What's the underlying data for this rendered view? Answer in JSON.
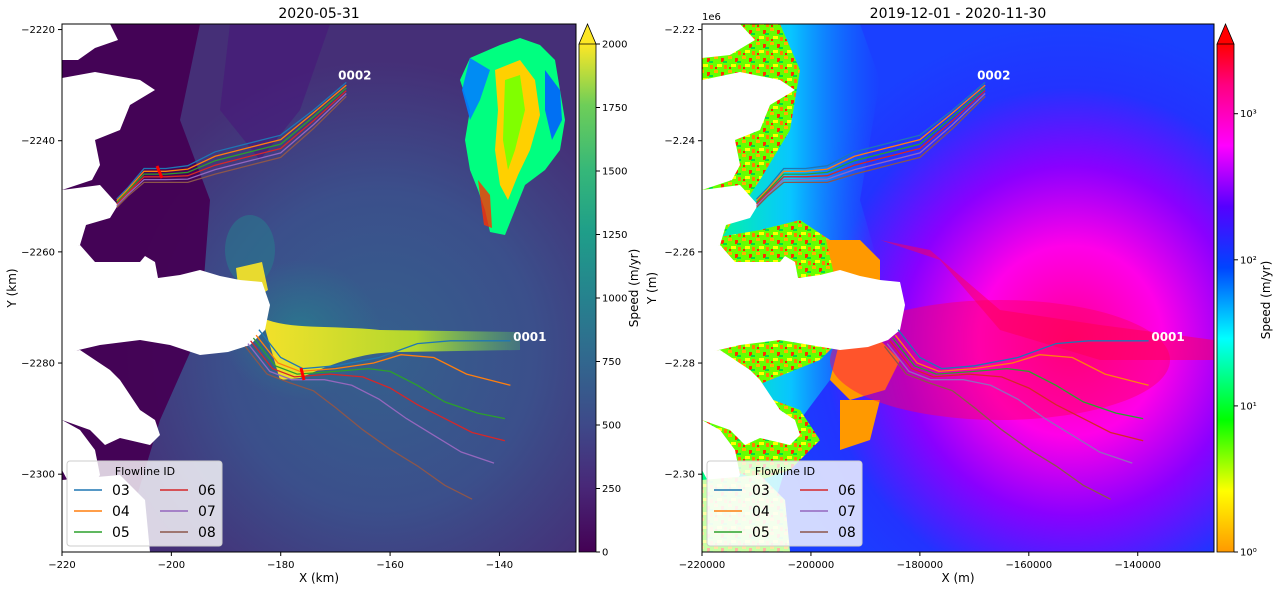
{
  "chart_data": [
    {
      "type": "heatmap",
      "title": "2020-05-31",
      "xlabel": "X (km)",
      "ylabel": "Y (km)",
      "xlim": [
        -220,
        -126
      ],
      "ylim": [
        -2314,
        -2219
      ],
      "xticks": [
        -220,
        -200,
        -180,
        -160,
        -140
      ],
      "yticks": [
        -2220,
        -2240,
        -2260,
        -2280,
        -2300
      ],
      "colorbar": {
        "label": "Speed (m/yr)",
        "scale": "linear",
        "range": [
          0,
          2000
        ],
        "ticks": [
          0,
          250,
          500,
          750,
          1000,
          1250,
          1500,
          1750,
          2000
        ],
        "colormap": "viridis",
        "extend": "max"
      },
      "glacier_labels": [
        {
          "text": "0002",
          "x": -169.5,
          "y": -2229
        },
        {
          "text": "0001",
          "x": -137.5,
          "y": -2276
        }
      ],
      "legend": {
        "title": "Flowline ID",
        "placement": "lower-left",
        "entries": [
          "03",
          "04",
          "05",
          "06",
          "07",
          "08"
        ]
      },
      "series": [
        {
          "name": "03",
          "color": "#1f77b4",
          "points": [
            [
              -184,
              -2274
            ],
            [
              -180,
              -2279
            ],
            [
              -176,
              -2281
            ],
            [
              -170,
              -2280.5
            ],
            [
              -162,
              -2279
            ],
            [
              -155,
              -2276.5
            ],
            [
              -149,
              -2276
            ],
            [
              -143,
              -2276
            ],
            [
              -138,
              -2276
            ]
          ]
        },
        {
          "name": "04",
          "color": "#ff7f0e",
          "points": [
            [
              -184.5,
              -2275
            ],
            [
              -180.5,
              -2280
            ],
            [
              -176.5,
              -2281.5
            ],
            [
              -170,
              -2281
            ],
            [
              -163,
              -2280
            ],
            [
              -158,
              -2278.5
            ],
            [
              -152,
              -2279
            ],
            [
              -146,
              -2282
            ],
            [
              -138,
              -2284
            ]
          ]
        },
        {
          "name": "05",
          "color": "#2ca02c",
          "points": [
            [
              -185,
              -2275.5
            ],
            [
              -181,
              -2280.5
            ],
            [
              -177,
              -2282
            ],
            [
              -170,
              -2281.5
            ],
            [
              -164,
              -2281
            ],
            [
              -160,
              -2281.5
            ],
            [
              -155,
              -2284
            ],
            [
              -150,
              -2287
            ],
            [
              -144,
              -2289
            ],
            [
              -139,
              -2290
            ]
          ]
        },
        {
          "name": "06",
          "color": "#d62728",
          "points": [
            [
              -185.5,
              -2276
            ],
            [
              -181.5,
              -2281
            ],
            [
              -177.5,
              -2282.5
            ],
            [
              -171,
              -2282
            ],
            [
              -165,
              -2282.5
            ],
            [
              -160,
              -2284.5
            ],
            [
              -155,
              -2287.5
            ],
            [
              -150,
              -2290
            ],
            [
              -145,
              -2292.5
            ],
            [
              -139,
              -2294
            ]
          ]
        },
        {
          "name": "07",
          "color": "#9467bd",
          "points": [
            [
              -186,
              -2276.5
            ],
            [
              -182,
              -2281.5
            ],
            [
              -178,
              -2283
            ],
            [
              -172,
              -2283
            ],
            [
              -167,
              -2284
            ],
            [
              -162,
              -2286.5
            ],
            [
              -157,
              -2290
            ],
            [
              -152,
              -2293
            ],
            [
              -147,
              -2296
            ],
            [
              -141,
              -2298
            ]
          ]
        },
        {
          "name": "08",
          "color": "#8c564b",
          "points": [
            [
              -186.5,
              -2277
            ],
            [
              -182.5,
              -2282
            ],
            [
              -178.5,
              -2283.5
            ],
            [
              -174,
              -2285
            ],
            [
              -170,
              -2288
            ],
            [
              -165,
              -2292
            ],
            [
              -160,
              -2295.5
            ],
            [
              -155,
              -2298.5
            ],
            [
              -150,
              -2302
            ],
            [
              -145,
              -2304.5
            ]
          ]
        },
        {
          "name": "03",
          "color": "#1f77b4",
          "points": [
            [
              -168,
              -2229.5
            ],
            [
              -174,
              -2234.5
            ],
            [
              -180,
              -2239
            ],
            [
              -186,
              -2240.5
            ],
            [
              -192,
              -2242
            ],
            [
              -197,
              -2244.5
            ],
            [
              -201,
              -2245
            ],
            [
              -205,
              -2245
            ],
            [
              -208,
              -2248.5
            ],
            [
              -210,
              -2250.5
            ]
          ]
        },
        {
          "name": "04",
          "color": "#ff7f0e",
          "points": [
            [
              -168,
              -2230
            ],
            [
              -174,
              -2235
            ],
            [
              -180,
              -2239.8
            ],
            [
              -186,
              -2241.3
            ],
            [
              -192,
              -2242.8
            ],
            [
              -197,
              -2245.1
            ],
            [
              -201,
              -2245.5
            ],
            [
              -205,
              -2245.5
            ],
            [
              -208,
              -2248.8
            ],
            [
              -210,
              -2250.8
            ]
          ]
        },
        {
          "name": "05",
          "color": "#2ca02c",
          "points": [
            [
              -168,
              -2230.5
            ],
            [
              -174,
              -2235.7
            ],
            [
              -180,
              -2240.6
            ],
            [
              -186,
              -2242.1
            ],
            [
              -192,
              -2243.6
            ],
            [
              -197,
              -2245.7
            ],
            [
              -201,
              -2246
            ],
            [
              -205,
              -2246
            ],
            [
              -208,
              -2249.1
            ],
            [
              -210,
              -2251.1
            ]
          ]
        },
        {
          "name": "06",
          "color": "#d62728",
          "points": [
            [
              -168,
              -2231
            ],
            [
              -174,
              -2236.4
            ],
            [
              -180,
              -2241.4
            ],
            [
              -186,
              -2242.9
            ],
            [
              -192,
              -2244.4
            ],
            [
              -197,
              -2246.3
            ],
            [
              -201,
              -2246.5
            ],
            [
              -205,
              -2246.5
            ],
            [
              -208,
              -2249.4
            ],
            [
              -210,
              -2251.4
            ]
          ]
        },
        {
          "name": "07",
          "color": "#9467bd",
          "points": [
            [
              -168,
              -2231.5
            ],
            [
              -174,
              -2237.1
            ],
            [
              -180,
              -2242.2
            ],
            [
              -186,
              -2243.7
            ],
            [
              -192,
              -2245.2
            ],
            [
              -197,
              -2246.9
            ],
            [
              -201,
              -2247
            ],
            [
              -205,
              -2247
            ],
            [
              -208,
              -2249.7
            ],
            [
              -210,
              -2251.7
            ]
          ]
        },
        {
          "name": "08",
          "color": "#8c564b",
          "points": [
            [
              -168,
              -2232
            ],
            [
              -174,
              -2237.8
            ],
            [
              -180,
              -2243
            ],
            [
              -186,
              -2244.5
            ],
            [
              -192,
              -2246
            ],
            [
              -197,
              -2247.5
            ],
            [
              -201,
              -2247.5
            ],
            [
              -205,
              -2247.5
            ],
            [
              -208,
              -2250
            ],
            [
              -210,
              -2252
            ]
          ]
        }
      ]
    },
    {
      "type": "heatmap",
      "title": "2019-12-01 - 2020-11-30",
      "xlabel": "X (m)",
      "ylabel": "Y (m)",
      "offset_text": "1e6",
      "xlim": [
        -220000,
        -126000
      ],
      "ylim": [
        -2.314,
        -2.219
      ],
      "xticks": [
        -220000,
        -200000,
        -180000,
        -160000,
        -140000
      ],
      "yticks": [
        -2.22,
        -2.24,
        -2.26,
        -2.28,
        -2.3
      ],
      "colorbar": {
        "label": "Speed (m/yr)",
        "scale": "log",
        "range": [
          1,
          3000
        ],
        "ticks": [
          "10⁰",
          "10¹",
          "10²",
          "10³"
        ],
        "colormap": "hsv",
        "extend": "max"
      },
      "glacier_labels": [
        {
          "text": "0002",
          "x": -169500,
          "y": -2.229
        },
        {
          "text": "0001",
          "x": -137500,
          "y": -2.276
        }
      ],
      "legend": {
        "title": "Flowline ID",
        "placement": "lower-left",
        "entries": [
          "03",
          "04",
          "05",
          "06",
          "07",
          "08"
        ]
      }
    }
  ]
}
